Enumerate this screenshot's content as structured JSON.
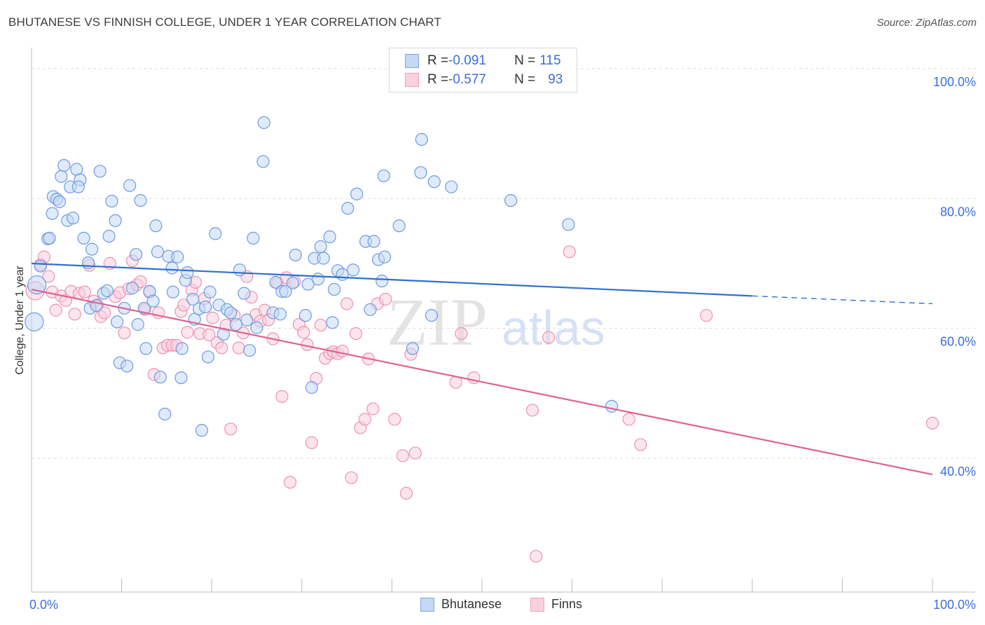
{
  "title": "BHUTANESE VS FINNISH COLLEGE, UNDER 1 YEAR CORRELATION CHART",
  "source": "Source: ZipAtlas.com",
  "watermark": {
    "zip": "ZIP",
    "atlas": "atlas"
  },
  "legend": [
    {
      "label": "R = ",
      "r": "-0.091",
      "n_label": "N = ",
      "n": "115"
    },
    {
      "label": "R = ",
      "r": "-0.577",
      "n_label": "N = ",
      "n": "93"
    }
  ],
  "chart_data": {
    "type": "scatter",
    "title": "BHUTANESE VS FINNISH COLLEGE, UNDER 1 YEAR CORRELATION CHART",
    "xlabel": "",
    "ylabel": "College, Under 1 year",
    "xlim": [
      0,
      100
    ],
    "ylim": [
      20,
      102
    ],
    "x_tick_labels": [
      "0.0%",
      "100.0%"
    ],
    "y_ticks": [
      40,
      60,
      80,
      100
    ],
    "y_tick_labels": [
      "40.0%",
      "60.0%",
      "80.0%",
      "100.0%"
    ],
    "colors": {
      "Bhutanese": "#7ea6e6",
      "Finns": "#f0a0bc",
      "blue_line": "#2f6fcf",
      "pink_line": "#e0628e"
    },
    "series": [
      {
        "name": "Bhutanese",
        "r": -0.091,
        "n": 115,
        "trend": {
          "x": [
            0,
            80
          ],
          "y": [
            70.0,
            65.0
          ],
          "dashed_to": [
            100,
            63.8
          ]
        },
        "points": [
          [
            0.3,
            61
          ],
          [
            0.6,
            66.7
          ],
          [
            1,
            69.6
          ],
          [
            1.8,
            73.8
          ],
          [
            2,
            73.9
          ],
          [
            2.3,
            77.7
          ],
          [
            2.4,
            80.3
          ],
          [
            2.8,
            79.9
          ],
          [
            3.1,
            79.5
          ],
          [
            3.3,
            83.4
          ],
          [
            3.6,
            85.1
          ],
          [
            4,
            76.6
          ],
          [
            4.3,
            81.8
          ],
          [
            4.6,
            77
          ],
          [
            5,
            84.5
          ],
          [
            5.4,
            82.9
          ],
          [
            5.2,
            81.8
          ],
          [
            5.8,
            73.9
          ],
          [
            6.3,
            70.1
          ],
          [
            6.7,
            72.2
          ],
          [
            6.5,
            63.1
          ],
          [
            7.2,
            63.5
          ],
          [
            7.6,
            84.2
          ],
          [
            8,
            65.4
          ],
          [
            8.4,
            65.8
          ],
          [
            8.6,
            74.2
          ],
          [
            8.9,
            79.6
          ],
          [
            9.3,
            76.6
          ],
          [
            9.5,
            61
          ],
          [
            9.8,
            54.7
          ],
          [
            10.3,
            63.1
          ],
          [
            10.6,
            54.2
          ],
          [
            10.9,
            82
          ],
          [
            11.2,
            66.2
          ],
          [
            11.6,
            71.4
          ],
          [
            11.8,
            60.6
          ],
          [
            12.1,
            79.7
          ],
          [
            12.5,
            63.1
          ],
          [
            12.7,
            56.9
          ],
          [
            13.1,
            65.7
          ],
          [
            13.5,
            64.2
          ],
          [
            13.8,
            75.8
          ],
          [
            14,
            71.8
          ],
          [
            14.3,
            52.5
          ],
          [
            14.8,
            46.8
          ],
          [
            15.2,
            71.1
          ],
          [
            15.6,
            69.3
          ],
          [
            15.7,
            65.6
          ],
          [
            16.2,
            71
          ],
          [
            16.6,
            52.4
          ],
          [
            16.7,
            56.9
          ],
          [
            17.1,
            67.4
          ],
          [
            17.3,
            68.6
          ],
          [
            17.9,
            64.5
          ],
          [
            18.1,
            61.4
          ],
          [
            18.6,
            63
          ],
          [
            18.9,
            44.3
          ],
          [
            19.3,
            63.3
          ],
          [
            19.6,
            55.6
          ],
          [
            19.8,
            65.6
          ],
          [
            20.4,
            74.6
          ],
          [
            20.8,
            63.6
          ],
          [
            21.3,
            59.1
          ],
          [
            21.7,
            62.9
          ],
          [
            22.1,
            62.4
          ],
          [
            22.7,
            60.6
          ],
          [
            23.1,
            69
          ],
          [
            23.6,
            65.4
          ],
          [
            23.9,
            61.3
          ],
          [
            24.2,
            56.6
          ],
          [
            24.6,
            73.9
          ],
          [
            25,
            60.1
          ],
          [
            25.7,
            85.7
          ],
          [
            25.8,
            91.7
          ],
          [
            26.8,
            62.4
          ],
          [
            27.1,
            67.1
          ],
          [
            27.6,
            62.2
          ],
          [
            27.8,
            65.7
          ],
          [
            28.2,
            65.7
          ],
          [
            29,
            67
          ],
          [
            29.3,
            71.3
          ],
          [
            30.4,
            62
          ],
          [
            30.7,
            66.8
          ],
          [
            31.1,
            50.9
          ],
          [
            31.4,
            70.8
          ],
          [
            31.8,
            67.6
          ],
          [
            32.1,
            72.6
          ],
          [
            32.4,
            70.8
          ],
          [
            33.1,
            74.1
          ],
          [
            33.4,
            60.9
          ],
          [
            33.6,
            66
          ],
          [
            34,
            68.9
          ],
          [
            34.5,
            68.3
          ],
          [
            35.1,
            78.5
          ],
          [
            35.7,
            69
          ],
          [
            36.1,
            80.7
          ],
          [
            37.1,
            73.4
          ],
          [
            37.6,
            62.9
          ],
          [
            38,
            73.4
          ],
          [
            38.5,
            70.6
          ],
          [
            38.9,
            67.3
          ],
          [
            39.1,
            83.5
          ],
          [
            39.2,
            71
          ],
          [
            40.8,
            75.8
          ],
          [
            42.3,
            56.9
          ],
          [
            43.2,
            84
          ],
          [
            43.3,
            89.1
          ],
          [
            44.4,
            62
          ],
          [
            44.7,
            82.6
          ],
          [
            46.6,
            81.8
          ],
          [
            53.2,
            79.7
          ],
          [
            59.6,
            76
          ],
          [
            64.4,
            48
          ]
        ]
      },
      {
        "name": "Finns",
        "r": -0.577,
        "n": 93,
        "trend": {
          "x": [
            0,
            100
          ],
          "y": [
            66.0,
            37.5
          ]
        },
        "points": [
          [
            0.4,
            65.8
          ],
          [
            1,
            69.8
          ],
          [
            1.4,
            71
          ],
          [
            1.9,
            68
          ],
          [
            2.3,
            65.6
          ],
          [
            2.7,
            62.8
          ],
          [
            3.3,
            65
          ],
          [
            3.8,
            64.3
          ],
          [
            4.4,
            65.7
          ],
          [
            4.8,
            62.2
          ],
          [
            5.3,
            65.4
          ],
          [
            5.9,
            65.6
          ],
          [
            6.4,
            69.7
          ],
          [
            6.9,
            64.2
          ],
          [
            7.3,
            63.6
          ],
          [
            7.7,
            61.8
          ],
          [
            8.1,
            62.4
          ],
          [
            8.7,
            70
          ],
          [
            9.3,
            64.9
          ],
          [
            9.8,
            65.5
          ],
          [
            10.3,
            59.3
          ],
          [
            10.8,
            66.1
          ],
          [
            11.2,
            70.4
          ],
          [
            11.7,
            66.7
          ],
          [
            12.1,
            67.2
          ],
          [
            12.6,
            62.9
          ],
          [
            13.1,
            65.6
          ],
          [
            13.6,
            52.9
          ],
          [
            14.1,
            62.4
          ],
          [
            14.6,
            57
          ],
          [
            15.1,
            57.4
          ],
          [
            15.6,
            57.4
          ],
          [
            16.1,
            57.4
          ],
          [
            16.6,
            62.6
          ],
          [
            16.9,
            63.6
          ],
          [
            17.3,
            59.4
          ],
          [
            17.8,
            65.9
          ],
          [
            18.2,
            67.1
          ],
          [
            18.7,
            59.2
          ],
          [
            19.2,
            64.6
          ],
          [
            19.7,
            59
          ],
          [
            20.1,
            61.6
          ],
          [
            20.6,
            57.8
          ],
          [
            21.1,
            57
          ],
          [
            21.6,
            60.5
          ],
          [
            22.1,
            44.5
          ],
          [
            22.5,
            62
          ],
          [
            23,
            57
          ],
          [
            23.5,
            59.3
          ],
          [
            23.9,
            68
          ],
          [
            24.4,
            64.8
          ],
          [
            24.9,
            62.1
          ],
          [
            25.4,
            61.1
          ],
          [
            25.9,
            62.8
          ],
          [
            26.3,
            61.3
          ],
          [
            26.8,
            58.4
          ],
          [
            27.3,
            67
          ],
          [
            27.8,
            49.5
          ],
          [
            28.3,
            67.8
          ],
          [
            28.7,
            36.3
          ],
          [
            29.2,
            67.2
          ],
          [
            29.7,
            60.6
          ],
          [
            30.2,
            59.4
          ],
          [
            30.6,
            57.5
          ],
          [
            31.1,
            42.4
          ],
          [
            31.6,
            52.3
          ],
          [
            32.1,
            60.5
          ],
          [
            32.6,
            55.4
          ],
          [
            33.1,
            56.1
          ],
          [
            33.5,
            56.4
          ],
          [
            34,
            56.1
          ],
          [
            34.5,
            56.5
          ],
          [
            35,
            63.8
          ],
          [
            35.5,
            37
          ],
          [
            36,
            59.2
          ],
          [
            36.5,
            44.7
          ],
          [
            37,
            46
          ],
          [
            37.4,
            55.3
          ],
          [
            37.9,
            47.6
          ],
          [
            38.4,
            63.8
          ],
          [
            39.3,
            64.5
          ],
          [
            40.3,
            46
          ],
          [
            41.2,
            40.4
          ],
          [
            41.6,
            34.6
          ],
          [
            42.1,
            56
          ],
          [
            42.6,
            40.8
          ],
          [
            47.1,
            51.7
          ],
          [
            47.7,
            59.2
          ],
          [
            49.1,
            52.4
          ],
          [
            55.6,
            47.4
          ],
          [
            56,
            24.9
          ],
          [
            57.4,
            58.6
          ],
          [
            59.7,
            71.8
          ],
          [
            66.3,
            46
          ],
          [
            67.6,
            42.1
          ],
          [
            74.9,
            62
          ],
          [
            100,
            45.4
          ]
        ]
      }
    ]
  }
}
